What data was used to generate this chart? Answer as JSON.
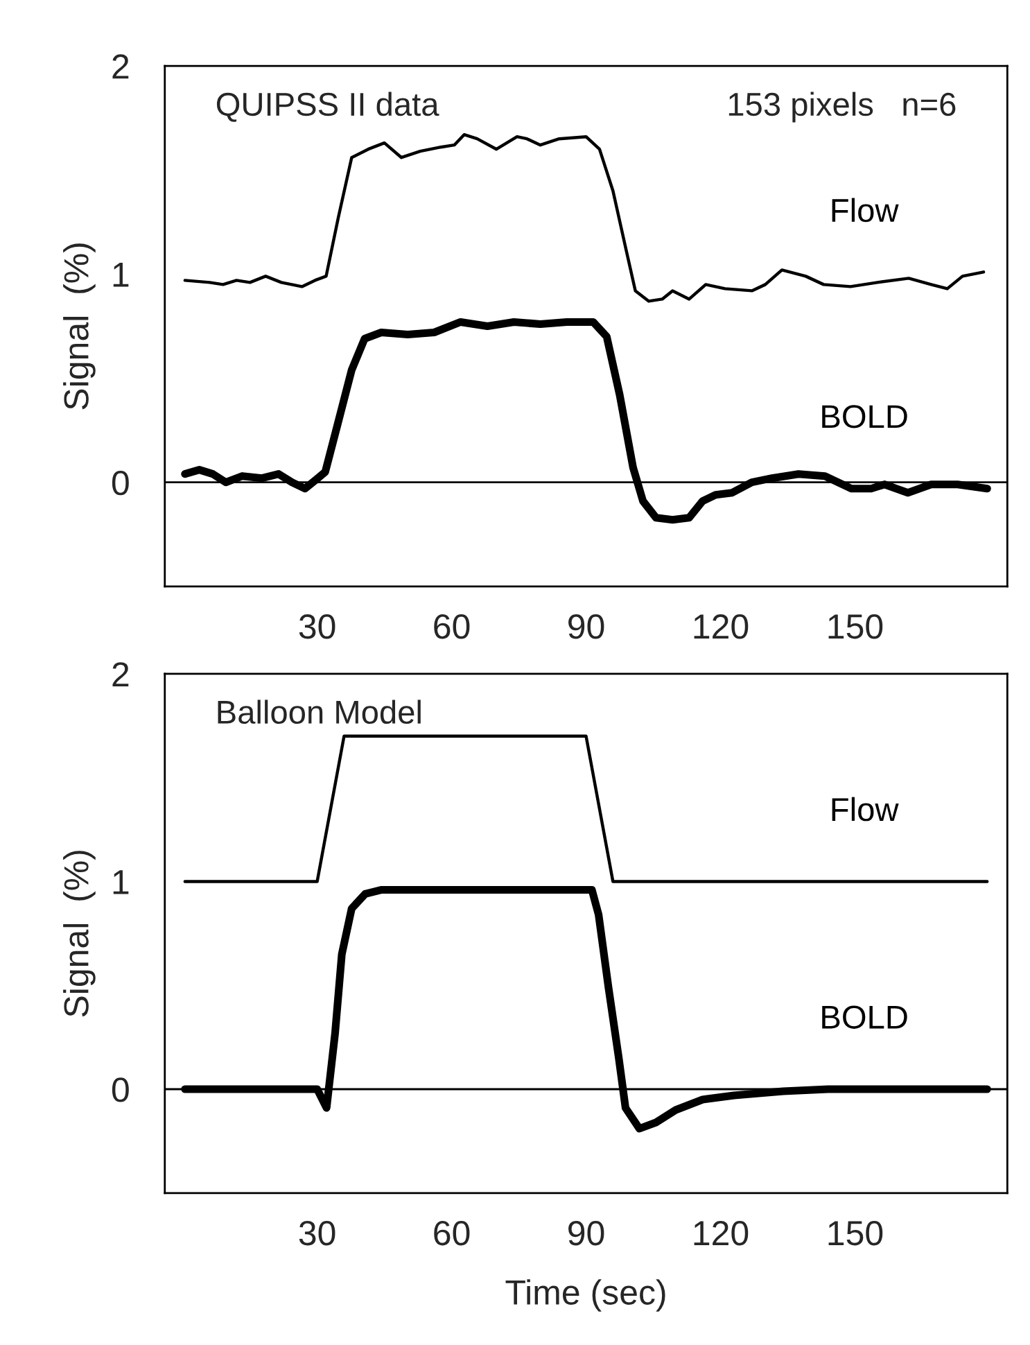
{
  "chart_data": [
    {
      "type": "line",
      "title": "QUIPSS II data",
      "subtitle": "153 pixels   n=6",
      "ylabel": "Signal  (%)",
      "xlim": [
        -4,
        184
      ],
      "ylim": [
        -0.5,
        2
      ],
      "xticks": [
        30,
        60,
        90,
        120,
        150
      ],
      "yticks": [
        0,
        1,
        2
      ],
      "grid": false,
      "legend": false,
      "ref_lines": [
        {
          "axis": "y",
          "value": 0,
          "color": "#000000"
        }
      ],
      "series": [
        {
          "name": "Flow",
          "color": "#000000",
          "x": [
            0.5,
            6,
            9,
            12,
            15,
            18.5,
            22,
            26.6,
            29.5,
            32,
            34.7,
            37.7,
            41.4,
            45,
            48.8,
            53,
            57.6,
            60.6,
            62.8,
            65.7,
            70,
            74.6,
            76.8,
            79.8,
            84,
            90,
            93,
            96,
            99,
            101,
            104,
            107,
            109.3,
            113,
            116.7,
            121,
            127,
            130,
            133.7,
            139,
            143,
            149,
            155,
            162,
            167,
            170.6,
            174,
            178.7
          ],
          "values": [
            0.97,
            0.96,
            0.95,
            0.97,
            0.96,
            0.99,
            0.96,
            0.94,
            0.97,
            0.99,
            1.27,
            1.56,
            1.6,
            1.63,
            1.56,
            1.59,
            1.61,
            1.62,
            1.67,
            1.65,
            1.6,
            1.66,
            1.65,
            1.62,
            1.65,
            1.66,
            1.6,
            1.4,
            1.11,
            0.92,
            0.87,
            0.88,
            0.92,
            0.88,
            0.95,
            0.93,
            0.92,
            0.95,
            1.02,
            0.99,
            0.95,
            0.94,
            0.96,
            0.98,
            0.95,
            0.93,
            0.99,
            1.01
          ]
        },
        {
          "name": "BOLD",
          "color": "#000000",
          "x": [
            0.5,
            3.7,
            6.7,
            9.6,
            13.3,
            17.7,
            21.4,
            24.4,
            27.3,
            29.6,
            31.8,
            34.7,
            37.7,
            40.6,
            44.3,
            50.2,
            56.1,
            62,
            68,
            73.9,
            79.8,
            85.7,
            91.6,
            94.6,
            97.5,
            100.5,
            102.7,
            105.6,
            109.3,
            113,
            116,
            118.9,
            122.6,
            127,
            131.5,
            137.4,
            143.3,
            149.2,
            153.6,
            156.6,
            161.8,
            167,
            172.9,
            179.5
          ],
          "values": [
            0.04,
            0.06,
            0.04,
            0.0,
            0.03,
            0.02,
            0.04,
            0.0,
            -0.03,
            0.01,
            0.05,
            0.29,
            0.54,
            0.69,
            0.72,
            0.71,
            0.72,
            0.77,
            0.75,
            0.77,
            0.76,
            0.77,
            0.77,
            0.7,
            0.42,
            0.07,
            -0.09,
            -0.17,
            -0.18,
            -0.17,
            -0.09,
            -0.06,
            -0.05,
            0.0,
            0.02,
            0.04,
            0.03,
            -0.03,
            -0.03,
            -0.01,
            -0.05,
            -0.01,
            -0.01,
            -0.03
          ]
        }
      ]
    },
    {
      "type": "line",
      "title": "Balloon Model",
      "ylabel": "Signal  (%)",
      "xlabel": "Time (sec)",
      "xlim": [
        -4,
        184
      ],
      "ylim": [
        -0.5,
        2
      ],
      "xticks": [
        30,
        60,
        90,
        120,
        150
      ],
      "yticks": [
        0,
        1,
        2
      ],
      "grid": false,
      "legend": false,
      "ref_lines": [
        {
          "axis": "y",
          "value": 0,
          "color": "#000000"
        }
      ],
      "series": [
        {
          "name": "Flow",
          "color": "#000000",
          "x": [
            0.5,
            30,
            36,
            90,
            96,
            179.5
          ],
          "values": [
            1,
            1,
            1.7,
            1.7,
            1,
            1
          ]
        },
        {
          "name": "BOLD",
          "color": "#000000",
          "x": [
            0.5,
            30,
            32.1,
            34,
            35.5,
            37.7,
            40.7,
            44.4,
            91.3,
            92.8,
            95,
            97.3,
            98.8,
            101.9,
            105.6,
            110,
            116,
            123,
            134,
            144,
            179.5
          ],
          "values": [
            0,
            0,
            -0.09,
            0.27,
            0.65,
            0.87,
            0.94,
            0.96,
            0.96,
            0.84,
            0.49,
            0.15,
            -0.09,
            -0.19,
            -0.16,
            -0.1,
            -0.05,
            -0.03,
            -0.01,
            0,
            0
          ]
        }
      ]
    }
  ]
}
